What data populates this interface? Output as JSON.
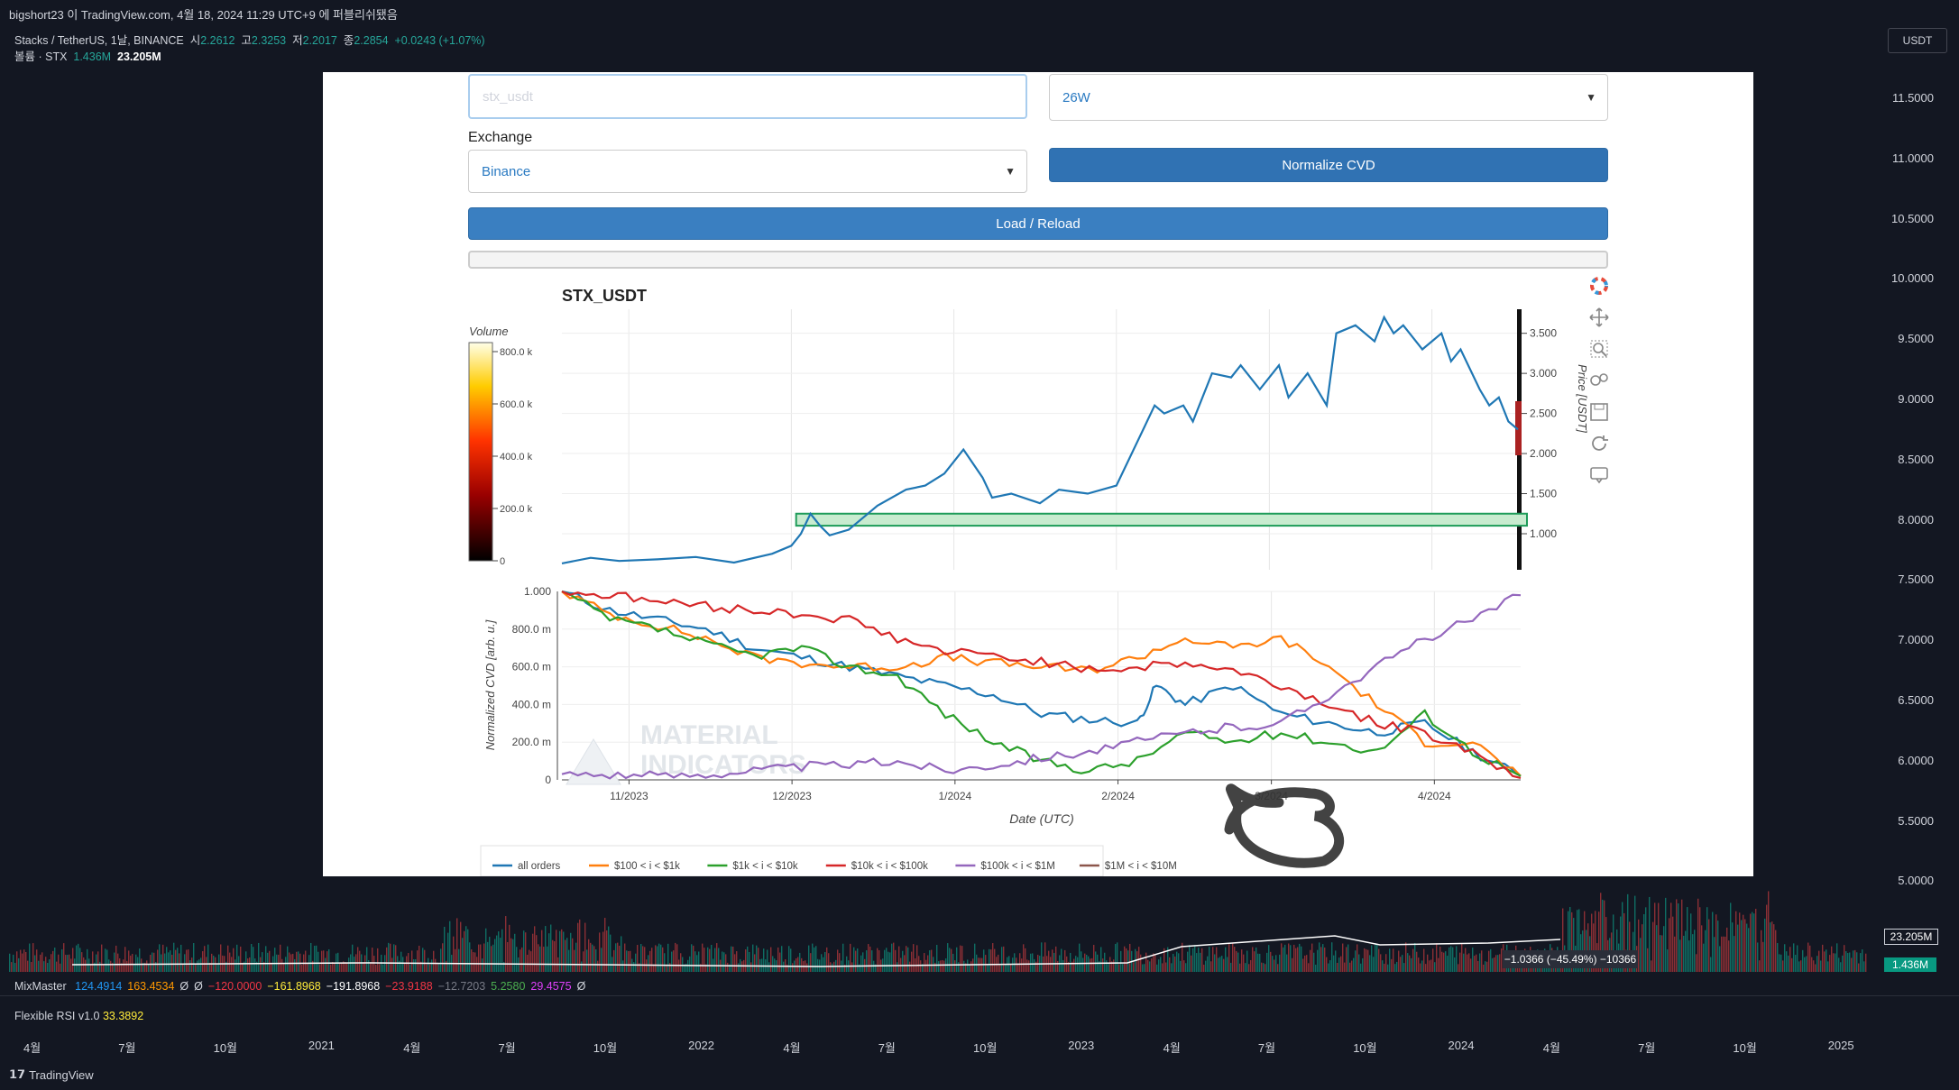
{
  "header": {
    "publish_line": "bigshort23 이 TradingView.com, 4월 18, 2024 11:29 UTC+9 에 퍼블리쉬됐음",
    "symbol": "Stacks / TetherUS, 1날, BINANCE",
    "ohlc": {
      "open_label": "시",
      "open": "2.2612",
      "high_label": "고",
      "high": "2.3253",
      "low_label": "저",
      "low": "2.2017",
      "close_label": "종",
      "close": "2.2854",
      "change": "+0.0243 (+1.07%)"
    },
    "volume_label": "볼륨 · STX",
    "volume_value": "1.436M",
    "volume_ma": "23.205M"
  },
  "currency_button": "USDT",
  "price_axis": [
    "11.5000",
    "11.0000",
    "10.5000",
    "10.0000",
    "9.5000",
    "9.0000",
    "8.5000",
    "8.0000",
    "7.5000",
    "7.0000",
    "6.5000",
    "6.0000",
    "5.5000",
    "5.0000"
  ],
  "volume_badges": {
    "ma": "23.205M",
    "vol": "1.436M"
  },
  "tooltip": "−1.0366 (−45.49%) −10366",
  "oscillators": {
    "mixmaster": {
      "name": "MixMaster",
      "values": [
        {
          "v": "124.4914",
          "color": "#2196f3"
        },
        {
          "v": "163.4534",
          "color": "#ff9800"
        },
        {
          "v": "Ø",
          "color": "#d1d4dc"
        },
        {
          "v": "Ø",
          "color": "#d1d4dc"
        },
        {
          "v": "−120.0000",
          "color": "#f23645"
        },
        {
          "v": "−161.8968",
          "color": "#ffeb3b"
        },
        {
          "v": "−191.8968",
          "color": "#ffffff"
        },
        {
          "v": "−23.9188",
          "color": "#f23645"
        },
        {
          "v": "−12.7203",
          "color": "#787b86"
        },
        {
          "v": "5.2580",
          "color": "#4caf50"
        },
        {
          "v": "29.4575",
          "color": "#e040fb"
        },
        {
          "v": "Ø",
          "color": "#d1d4dc"
        }
      ]
    },
    "rsi": {
      "name": "Flexible RSI v1.0",
      "value": "33.3892"
    }
  },
  "time_axis": [
    "4월",
    "7월",
    "10월",
    "2021",
    "4월",
    "7월",
    "10월",
    "2022",
    "4월",
    "7월",
    "10월",
    "2023",
    "4월",
    "7월",
    "10월",
    "2024",
    "4월",
    "7월",
    "10월",
    "2025"
  ],
  "footer_brand": "TradingView",
  "app": {
    "symbol_input": "stx_usdt",
    "timeframe_select": "26W",
    "exchange_label": "Exchange",
    "exchange_select": "Binance",
    "normalize_button": "Normalize CVD",
    "load_button": "Load / Reload"
  },
  "chart_data": [
    {
      "type": "line",
      "title": "STX_USDT",
      "ylabel": "Price [USDT]",
      "yticks": [
        "1.000",
        "1.500",
        "2.000",
        "2.500",
        "3.000",
        "3.500"
      ],
      "ylim": [
        0.55,
        3.8
      ],
      "colorbar": {
        "label": "Volume",
        "ticks": [
          "0",
          "200.0 k",
          "400.0 k",
          "600.0 k",
          "800.0 k"
        ]
      },
      "series": [
        {
          "color": "#1f77b4",
          "x": [
            0,
            0.03,
            0.06,
            0.1,
            0.14,
            0.18,
            0.22,
            0.24,
            0.25,
            0.26,
            0.27,
            0.28,
            0.3,
            0.32,
            0.33,
            0.36,
            0.38,
            0.4,
            0.42,
            0.44,
            0.45,
            0.47,
            0.5,
            0.52,
            0.55,
            0.58,
            0.6,
            0.62,
            0.63,
            0.65,
            0.66,
            0.68,
            0.7,
            0.71,
            0.73,
            0.75,
            0.76,
            0.78,
            0.8,
            0.81,
            0.83,
            0.85,
            0.86,
            0.87,
            0.88,
            0.9,
            0.91,
            0.92,
            0.93,
            0.94,
            0.96,
            0.97,
            0.98,
            0.99,
            1.0
          ],
          "y": [
            0.63,
            0.7,
            0.66,
            0.68,
            0.71,
            0.64,
            0.75,
            0.85,
            1.0,
            1.25,
            1.1,
            0.98,
            1.05,
            1.25,
            1.35,
            1.55,
            1.6,
            1.75,
            2.05,
            1.7,
            1.45,
            1.5,
            1.38,
            1.55,
            1.5,
            1.6,
            2.1,
            2.6,
            2.5,
            2.6,
            2.4,
            3.0,
            2.95,
            3.1,
            2.8,
            3.1,
            2.7,
            3.0,
            2.6,
            3.5,
            3.6,
            3.4,
            3.7,
            3.5,
            3.6,
            3.3,
            3.4,
            3.5,
            3.15,
            3.3,
            2.8,
            2.6,
            2.7,
            2.4,
            2.3
          ]
        }
      ],
      "annotation": {
        "type": "box",
        "y0": 1.1,
        "y1": 1.25,
        "color": "#2ca02c"
      }
    },
    {
      "type": "line",
      "xlabel": "Date (UTC)",
      "ylabel": "Normalized CVD [arb. u.]",
      "xticks": [
        "11/2023",
        "12/2023",
        "1/2024",
        "2/2024",
        "3/2024",
        "4/2024"
      ],
      "yticks": [
        "0",
        "200.0 m",
        "400.0 m",
        "600.0 m",
        "800.0 m",
        "1.000"
      ],
      "ylim": [
        0,
        1.0
      ],
      "series": [
        {
          "name": "all orders",
          "color": "#1f77b4",
          "x": [
            0,
            0.05,
            0.1,
            0.15,
            0.2,
            0.25,
            0.3,
            0.35,
            0.4,
            0.45,
            0.5,
            0.55,
            0.6,
            0.62,
            0.65,
            0.7,
            0.75,
            0.8,
            0.85,
            0.9,
            0.95,
            1.0
          ],
          "y": [
            1.0,
            0.9,
            0.85,
            0.8,
            0.7,
            0.65,
            0.6,
            0.55,
            0.5,
            0.45,
            0.35,
            0.32,
            0.3,
            0.5,
            0.4,
            0.5,
            0.35,
            0.3,
            0.25,
            0.3,
            0.15,
            0.02
          ]
        },
        {
          "name": "$100 < i < $1k",
          "color": "#ff7f0e",
          "x": [
            0,
            0.05,
            0.1,
            0.15,
            0.2,
            0.25,
            0.3,
            0.35,
            0.4,
            0.45,
            0.5,
            0.55,
            0.6,
            0.65,
            0.7,
            0.75,
            0.8,
            0.85,
            0.9,
            0.95,
            1.0
          ],
          "y": [
            1.0,
            0.88,
            0.82,
            0.75,
            0.65,
            0.62,
            0.6,
            0.6,
            0.65,
            0.62,
            0.6,
            0.58,
            0.65,
            0.75,
            0.7,
            0.75,
            0.6,
            0.4,
            0.2,
            0.2,
            0.02
          ]
        },
        {
          "name": "$1k < i < $10k",
          "color": "#2ca02c",
          "x": [
            0,
            0.05,
            0.1,
            0.15,
            0.2,
            0.25,
            0.3,
            0.35,
            0.4,
            0.45,
            0.5,
            0.55,
            0.6,
            0.65,
            0.7,
            0.75,
            0.8,
            0.85,
            0.9,
            0.95,
            1.0
          ],
          "y": [
            1.0,
            0.85,
            0.8,
            0.72,
            0.66,
            0.7,
            0.6,
            0.55,
            0.35,
            0.2,
            0.1,
            0.05,
            0.1,
            0.25,
            0.2,
            0.25,
            0.2,
            0.15,
            0.35,
            0.15,
            0.02
          ]
        },
        {
          "name": "$10k < i < $100k",
          "color": "#d62728",
          "x": [
            0,
            0.05,
            0.1,
            0.15,
            0.2,
            0.25,
            0.3,
            0.35,
            0.4,
            0.45,
            0.5,
            0.55,
            0.6,
            0.65,
            0.7,
            0.75,
            0.8,
            0.85,
            0.9,
            0.95,
            1.0
          ],
          "y": [
            1.0,
            0.98,
            0.95,
            0.92,
            0.9,
            0.88,
            0.85,
            0.75,
            0.68,
            0.66,
            0.63,
            0.58,
            0.6,
            0.62,
            0.58,
            0.5,
            0.4,
            0.3,
            0.25,
            0.15,
            0.01
          ]
        },
        {
          "name": "$100k < i < $1M",
          "color": "#9467bd",
          "x": [
            0,
            0.05,
            0.1,
            0.15,
            0.2,
            0.25,
            0.3,
            0.35,
            0.4,
            0.45,
            0.5,
            0.55,
            0.6,
            0.65,
            0.7,
            0.75,
            0.8,
            0.85,
            0.9,
            0.95,
            1.0
          ],
          "y": [
            0.03,
            0.03,
            0.02,
            0.03,
            0.05,
            0.07,
            0.08,
            0.1,
            0.05,
            0.08,
            0.12,
            0.15,
            0.2,
            0.25,
            0.28,
            0.3,
            0.45,
            0.6,
            0.75,
            0.85,
            0.98
          ]
        },
        {
          "name": "$1M < i < $10M",
          "color": "#8c564b",
          "x": [],
          "y": []
        }
      ]
    }
  ]
}
